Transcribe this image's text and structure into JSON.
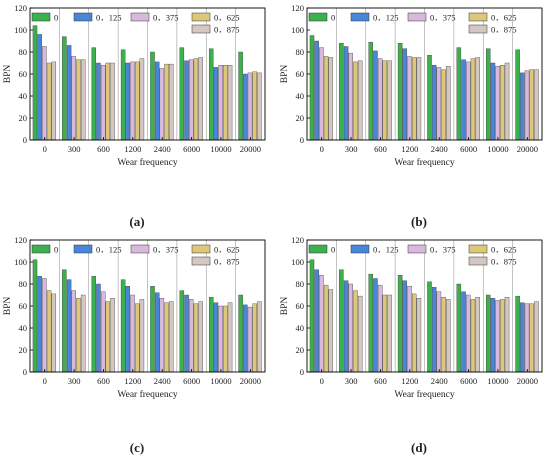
{
  "colors": {
    "0": "#3cb04c",
    "0.125": "#4a86d8",
    "0.375": "#d9b8de",
    "0.625": "#dcc878",
    "0.875": "#d4c6c2",
    "axis": "#000000",
    "divider": "#9a9a9a"
  },
  "chart_data": [
    {
      "type": "bar",
      "panel_label": "(a)",
      "xlabel": "Wear frequency",
      "ylabel": "BPN",
      "ylim": [
        0,
        120
      ],
      "yticks": [
        "0",
        "20",
        "40",
        "60",
        "80",
        "100",
        "120"
      ],
      "categories": [
        "0",
        "300",
        "600",
        "1200",
        "2400",
        "6000",
        "10000",
        "20000"
      ],
      "legend_title": "",
      "series": [
        {
          "name": "0",
          "values": [
            104,
            94,
            84,
            82,
            80,
            84,
            83,
            80
          ]
        },
        {
          "name": "0．125",
          "values": [
            96,
            86,
            70,
            70,
            71,
            72,
            66,
            60
          ]
        },
        {
          "name": "0．375",
          "values": [
            85,
            76,
            68,
            71,
            65,
            73,
            68,
            61
          ]
        },
        {
          "name": "0．625",
          "values": [
            70,
            73,
            70,
            71,
            69,
            74,
            68,
            62
          ]
        },
        {
          "name": "0．875",
          "values": [
            71,
            73,
            70,
            74,
            69,
            75,
            68,
            61
          ]
        }
      ]
    },
    {
      "type": "bar",
      "panel_label": "(b)",
      "xlabel": "Wear frequency",
      "ylabel": "BPN",
      "ylim": [
        0,
        120
      ],
      "yticks": [
        "0",
        "20",
        "40",
        "60",
        "80",
        "100",
        "120"
      ],
      "categories": [
        "0",
        "300",
        "600",
        "1200",
        "2400",
        "6000",
        "10000",
        "20000"
      ],
      "series": [
        {
          "name": "0",
          "values": [
            95,
            88,
            89,
            88,
            77,
            84,
            83,
            82
          ]
        },
        {
          "name": "0．125",
          "values": [
            90,
            85,
            81,
            83,
            68,
            73,
            70,
            61
          ]
        },
        {
          "name": "0．375",
          "values": [
            84,
            79,
            74,
            76,
            66,
            71,
            67,
            63
          ]
        },
        {
          "name": "0．625",
          "values": [
            76,
            71,
            72,
            75,
            64,
            74,
            68,
            64
          ]
        },
        {
          "name": "0．875",
          "values": [
            75,
            72,
            72,
            75,
            67,
            75,
            70,
            64
          ]
        }
      ]
    },
    {
      "type": "bar",
      "panel_label": "(c)",
      "xlabel": "Wear frequency",
      "ylabel": "BPN",
      "ylim": [
        0,
        120
      ],
      "yticks": [
        "0",
        "20",
        "40",
        "60",
        "80",
        "100",
        "120"
      ],
      "categories": [
        "0",
        "300",
        "600",
        "1200",
        "2400",
        "6000",
        "10000",
        "20000"
      ],
      "series": [
        {
          "name": "0",
          "values": [
            102,
            93,
            87,
            84,
            78,
            74,
            68,
            70
          ]
        },
        {
          "name": "0．125",
          "values": [
            87,
            84,
            80,
            78,
            72,
            70,
            63,
            61
          ]
        },
        {
          "name": "0．375",
          "values": [
            85,
            74,
            73,
            70,
            67,
            66,
            60,
            59
          ]
        },
        {
          "name": "0．625",
          "values": [
            74,
            67,
            64,
            62,
            63,
            62,
            60,
            62
          ]
        },
        {
          "name": "0．875",
          "values": [
            71,
            70,
            67,
            66,
            64,
            64,
            63,
            64
          ]
        }
      ]
    },
    {
      "type": "bar",
      "panel_label": "(d)",
      "xlabel": "Wear frequency",
      "ylabel": "BPN",
      "ylim": [
        0,
        120
      ],
      "yticks": [
        "0",
        "20",
        "40",
        "60",
        "80",
        "100",
        "120"
      ],
      "categories": [
        "0",
        "300",
        "600",
        "1200",
        "2400",
        "6000",
        "10000",
        "20000"
      ],
      "series": [
        {
          "name": "0",
          "values": [
            102,
            93,
            89,
            88,
            82,
            80,
            70,
            69
          ]
        },
        {
          "name": "0．125",
          "values": [
            93,
            83,
            85,
            83,
            77,
            73,
            67,
            63
          ]
        },
        {
          "name": "0．375",
          "values": [
            88,
            80,
            79,
            78,
            73,
            70,
            65,
            62
          ]
        },
        {
          "name": "0．625",
          "values": [
            79,
            74,
            70,
            71,
            68,
            66,
            66,
            62
          ]
        },
        {
          "name": "0．875",
          "values": [
            75,
            69,
            70,
            67,
            66,
            68,
            68,
            64
          ]
        }
      ]
    }
  ]
}
